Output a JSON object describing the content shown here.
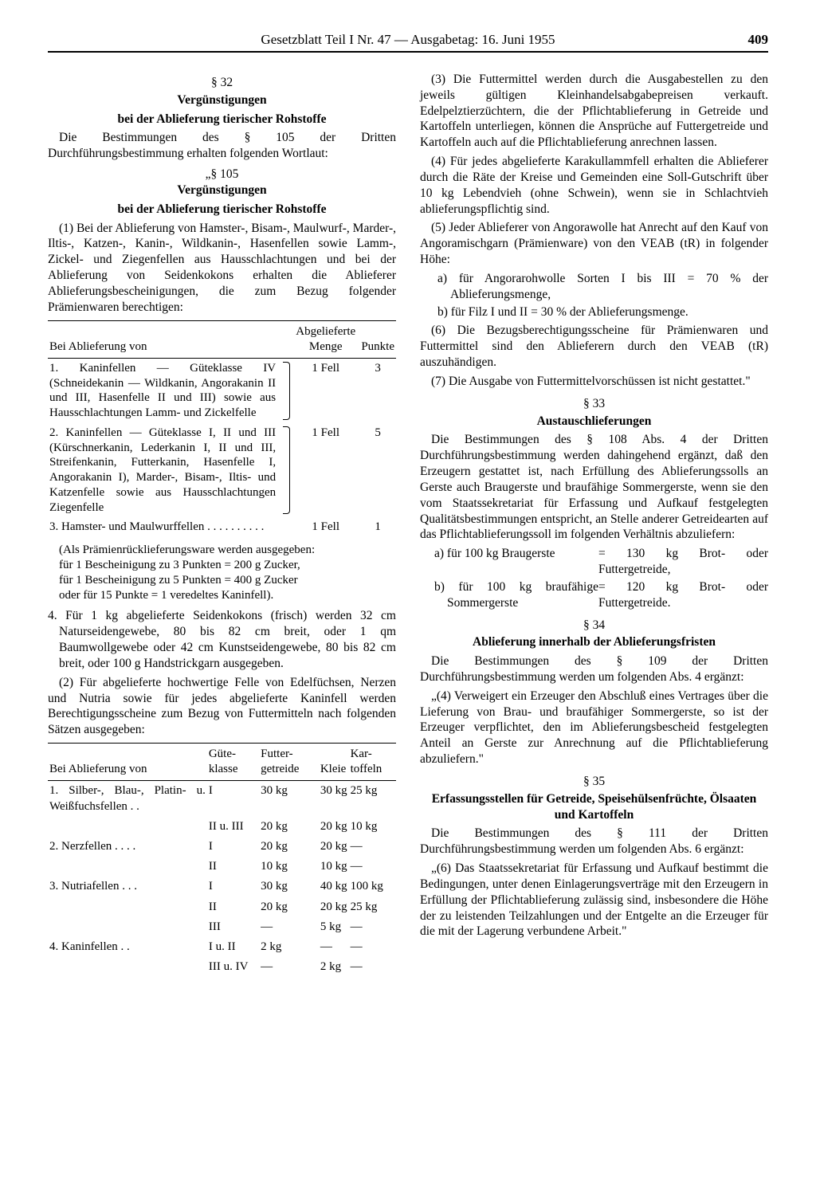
{
  "header": {
    "center": "Gesetzblatt Teil I Nr. 47 — Ausgabetag: 16. Juni 1955",
    "page": "409"
  },
  "left": {
    "s32": {
      "num": "§ 32",
      "title": "Vergünstigungen",
      "subtitle": "bei der Ablieferung tierischer Rohstoffe",
      "intro": "Die Bestimmungen des § 105 der Dritten Durchführungsbestimmung erhalten folgenden Wortlaut:",
      "q_num": "„§ 105",
      "q_title": "Vergünstigungen",
      "q_subtitle": "bei der Ablieferung tierischer Rohstoffe",
      "p1": "(1) Bei der Ablieferung von Hamster-, Bisam-, Maulwurf-, Marder-, Iltis-, Katzen-, Kanin-, Wildkanin-, Hasenfellen sowie Lamm-, Zickel- und Ziegenfellen aus Hausschlachtungen und bei der Ablieferung von Seidenkokons erhalten die Ablieferer Ablieferungsbescheinigungen, die zum Bezug folgender Prämienwaren berechtigen:",
      "tbl1": {
        "h1": "Bei Ablieferung von",
        "h2": "Abgelieferte Menge",
        "h3": "Punkte",
        "r1_desc": "1. Kaninfellen — Güteklasse IV (Schneidekanin — Wildkanin, Angorakanin II und III, Hasenfelle II und III) sowie aus Hausschlachtungen Lamm- und Zickelfelle",
        "r1_menge": "1 Fell",
        "r1_punkte": "3",
        "r2_desc": "2. Kaninfellen — Güteklasse I, II und III (Kürschnerkanin, Lederkanin I, II und III, Streifenkanin, Futterkanin, Hasenfelle I, Angorakanin I), Marder-, Bisam-, Iltis- und Katzenfelle sowie aus Hausschlachtungen Ziegenfelle",
        "r2_menge": "1 Fell",
        "r2_punkte": "5",
        "r3_desc": "3. Hamster- und Maulwurffellen   . . . . . . . . . .",
        "r3_menge": "1 Fell",
        "r3_punkte": "1"
      },
      "paren": "(Als Prämienrücklieferungsware werden ausgegeben:\nfür 1 Bescheinigung zu 3 Punkten = 200 g Zucker,\nfür 1 Bescheinigung zu 5 Punkten = 400 g Zucker\noder für 15 Punkte = 1 veredeltes Kaninfell).",
      "item4": "4. Für 1 kg abgelieferte Seidenkokons (frisch) werden 32 cm Naturseidengewebe, 80 bis 82 cm breit, oder 1 qm Baumwollgewebe oder 42 cm Kunstseidengewebe, 80 bis 82 cm breit, oder 100 g Handstrickgarn ausgegeben.",
      "p2": "(2) Für abgelieferte hochwertige Felle von Edelfüchsen, Nerzen und Nutria sowie für jedes abgelieferte Kaninfell werden Berechtigungsscheine zum Bezug von Futtermitteln nach folgenden Sätzen ausgegeben:",
      "tbl2": {
        "h1": "Bei Ablieferung von",
        "h2": "Güte-klasse",
        "h3": "Futter-getreide",
        "h4": "Kleie",
        "h5": "Kar-toffeln",
        "rows": [
          {
            "desc": "1. Silber-, Blau-, Platin- u. Weißfuchsfellen   . .",
            "k": "I",
            "fg": "30 kg",
            "kl": "30 kg",
            "ka": "25 kg"
          },
          {
            "desc": "",
            "k": "II u. III",
            "fg": "20 kg",
            "kl": "20 kg",
            "ka": "10 kg"
          },
          {
            "desc": "2. Nerzfellen   . . . .",
            "k": "I",
            "fg": "20 kg",
            "kl": "20 kg",
            "ka": "—"
          },
          {
            "desc": "",
            "k": "II",
            "fg": "10 kg",
            "kl": "10 kg",
            "ka": "—"
          },
          {
            "desc": "3. Nutriafellen   . . .",
            "k": "I",
            "fg": "30 kg",
            "kl": "40 kg",
            "ka": "100 kg"
          },
          {
            "desc": "",
            "k": "II",
            "fg": "20 kg",
            "kl": "20 kg",
            "ka": "25 kg"
          },
          {
            "desc": "",
            "k": "III",
            "fg": "—",
            "kl": "5 kg",
            "ka": "—"
          },
          {
            "desc": "4. Kaninfellen   . .",
            "k": "I u. II",
            "fg": "2 kg",
            "kl": "—",
            "ka": "—"
          },
          {
            "desc": "",
            "k": "III u. IV",
            "fg": "—",
            "kl": "2 kg",
            "ka": "—"
          }
        ]
      }
    }
  },
  "right": {
    "p3": "(3) Die Futtermittel werden durch die Ausgabestellen zu den jeweils gültigen Kleinhandelsabgabepreisen verkauft. Edelpelztierzüchtern, die der Pflichtablieferung in Getreide und Kartoffeln unterliegen, können die Ansprüche auf Futtergetreide und Kartoffeln auch auf die Pflichtablieferung anrechnen lassen.",
    "p4": "(4) Für jedes abgelieferte Karakullammfell erhalten die Ablieferer durch die Räte der Kreise und Gemeinden eine Soll-Gutschrift über 10 kg Lebendvieh (ohne Schwein), wenn sie in Schlachtvieh ablieferungspflichtig sind.",
    "p5": "(5) Jeder Ablieferer von Angorawolle hat Anrecht auf den Kauf von Angoramischgarn (Prämienware) von den VEAB (tR) in folgender Höhe:",
    "p5a": "a) für Angorarohwolle Sorten I bis III = 70 % der Ablieferungsmenge,",
    "p5b": "b) für Filz I und II = 30 % der Ablieferungsmenge.",
    "p6": "(6) Die Bezugsberechtigungsscheine für Prämienwaren und Futtermittel sind den Ablieferern durch den VEAB (tR) auszuhändigen.",
    "p7": "(7) Die Ausgabe von Futtermittelvorschüssen ist nicht gestattet.\"",
    "s33": {
      "num": "§ 33",
      "title": "Austauschlieferungen",
      "body": "Die Bestimmungen des § 108 Abs. 4 der Dritten Durchführungsbestimmung werden dahingehend ergänzt, daß den Erzeugern gestattet ist, nach Erfüllung des Ablieferungssolls an Gerste auch Braugerste und braufähige Sommergerste, wenn sie den vom Staatssekretariat für Erfassung und Aufkauf festgelegten Qualitätsbestimmungen entspricht, an Stelle anderer Getreidearten auf das Pflichtablieferungssoll im folgenden Verhältnis abzuliefern:",
      "xa_l": "a) für 100 kg Braugerste",
      "xa_r": "= 130 kg Brot- oder Futtergetreide,",
      "xb_l": "b) für 100 kg braufähige Sommergerste",
      "xb_r": "= 120 kg Brot- oder Futtergetreide."
    },
    "s34": {
      "num": "§ 34",
      "title": "Ablieferung innerhalb der Ablieferungsfristen",
      "intro": "Die Bestimmungen des § 109 der Dritten Durchführungsbestimmung werden um folgenden Abs. 4 ergänzt:",
      "quote": "„(4) Verweigert ein Erzeuger den Abschluß eines Vertrages über die Lieferung von Brau- und braufähiger Sommergerste, so ist der Erzeuger verpflichtet, den im Ablieferungsbescheid festgelegten Anteil an Gerste zur Anrechnung auf die Pflichtablieferung abzuliefern.\""
    },
    "s35": {
      "num": "§ 35",
      "title": "Erfassungsstellen für Getreide, Speisehülsenfrüchte, Ölsaaten und Kartoffeln",
      "intro": "Die Bestimmungen des § 111 der Dritten Durchführungsbestimmung werden um folgenden Abs. 6 ergänzt:",
      "quote": "„(6) Das Staatssekretariat für Erfassung und Aufkauf bestimmt die Bedingungen, unter denen Einlagerungsverträge mit den Erzeugern in Erfüllung der Pflichtablieferung zulässig sind, insbesondere die Höhe der zu leistenden Teilzahlungen und der Entgelte an die Erzeuger für die mit der Lagerung verbundene Arbeit.\""
    }
  }
}
